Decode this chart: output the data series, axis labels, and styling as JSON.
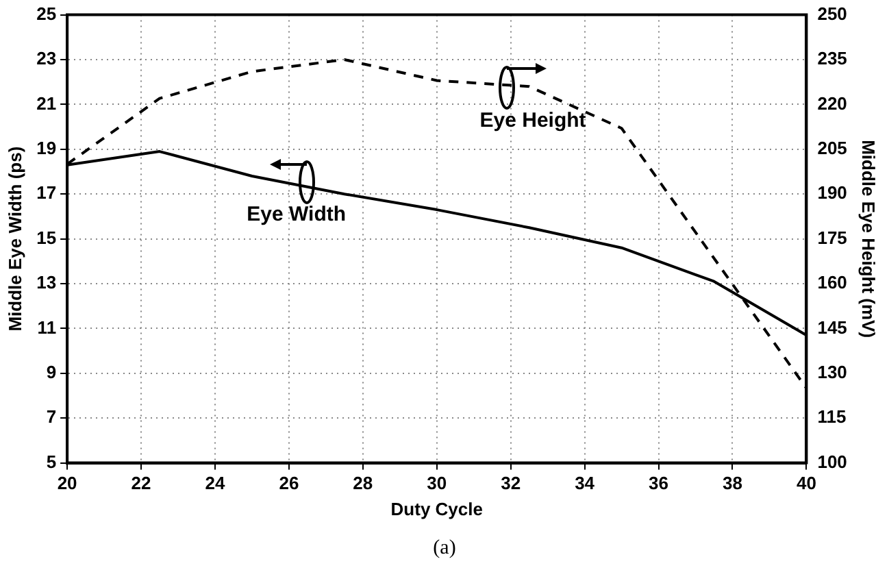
{
  "chart_data": {
    "type": "line",
    "xlabel": "Duty Cycle",
    "ylabel": "Middle Eye Width (ps)",
    "y2label": "Middle Eye Height (mV)",
    "xlim": [
      20,
      40
    ],
    "xticks": [
      20,
      22,
      24,
      26,
      28,
      30,
      32,
      34,
      36,
      38,
      40
    ],
    "ylim": [
      5,
      25
    ],
    "yticks": [
      5,
      7,
      9,
      11,
      13,
      15,
      17,
      19,
      21,
      23,
      25
    ],
    "y2lim": [
      100,
      250
    ],
    "y2ticks": [
      100,
      115,
      130,
      145,
      160,
      175,
      190,
      205,
      220,
      235,
      250
    ],
    "grid": true,
    "legend": false,
    "marker": "none",
    "series": [
      {
        "color": "#000000",
        "line_style": "solid",
        "x": [
          20,
          22.5,
          25,
          27.5,
          30,
          32.5,
          35,
          37.5,
          40
        ],
        "values": [
          18.3,
          18.9,
          17.8,
          17,
          16.3,
          15.5,
          14.6,
          13.1,
          10.7
        ]
      },
      {
        "color": "#000000",
        "line_style": "dashed",
        "axis": "y2",
        "x": [
          20,
          22.5,
          25,
          27.5,
          30,
          32.5,
          35,
          40
        ],
        "values": [
          200,
          222,
          231,
          235,
          228,
          226,
          212,
          125
        ]
      }
    ],
    "annotations": [
      "Eye Width",
      "Eye Height",
      "(a)"
    ]
  }
}
